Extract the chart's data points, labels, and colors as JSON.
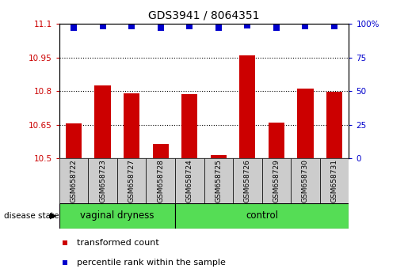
{
  "title": "GDS3941 / 8064351",
  "samples": [
    "GSM658722",
    "GSM658723",
    "GSM658727",
    "GSM658728",
    "GSM658724",
    "GSM658725",
    "GSM658726",
    "GSM658729",
    "GSM658730",
    "GSM658731"
  ],
  "bar_values": [
    10.655,
    10.825,
    10.79,
    10.565,
    10.785,
    10.515,
    10.96,
    10.66,
    10.81,
    10.795
  ],
  "percentile_values": [
    97,
    98,
    98,
    97,
    98,
    97,
    99,
    97,
    98,
    98
  ],
  "y_min": 10.5,
  "y_max": 11.1,
  "y_ticks": [
    10.5,
    10.65,
    10.8,
    10.95,
    11.1
  ],
  "y_tick_labels": [
    "10.5",
    "10.65",
    "10.8",
    "10.95",
    "11.1"
  ],
  "right_y_ticks": [
    0,
    25,
    50,
    75,
    100
  ],
  "right_y_tick_labels": [
    "0",
    "25",
    "50",
    "75",
    "100%"
  ],
  "bar_color": "#cc0000",
  "dot_color": "#0000cc",
  "group1_label": "vaginal dryness",
  "group2_label": "control",
  "group1_count": 4,
  "group2_count": 6,
  "disease_state_label": "disease state",
  "legend_bar_label": "transformed count",
  "legend_dot_label": "percentile rank within the sample",
  "bar_width": 0.55,
  "group_bg_color": "#55dd55",
  "sample_bg_color": "#cccccc",
  "dot_size": 35,
  "title_fontsize": 10,
  "tick_fontsize": 7.5,
  "sample_fontsize": 6.5,
  "group_fontsize": 8.5,
  "legend_fontsize": 8
}
